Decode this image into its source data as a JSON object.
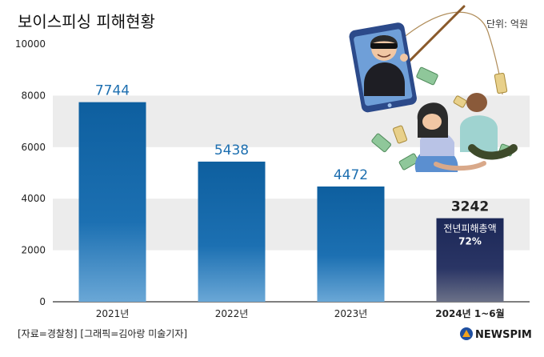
{
  "chart_data": {
    "type": "bar",
    "title": "보이스피싱 피해현황",
    "unit_label": "단위: 억원",
    "categories": [
      "2021년",
      "2022년",
      "2023년",
      "2024년 1~6월"
    ],
    "values": [
      7744,
      5438,
      4472,
      3242
    ],
    "ylim": [
      0,
      10000
    ],
    "yticks": [
      0,
      2000,
      4000,
      6000,
      8000,
      10000
    ],
    "highlight_index": 3,
    "annotation": {
      "line1": "전년피해총액",
      "line2": "72%"
    },
    "colors": {
      "bar_top": "#0e5f9f",
      "bar_bottom": "#6aa7d6",
      "highlight_top": "#1c2857",
      "highlight_bottom": "#6b7188",
      "label": "#1d6fb0",
      "highlight_label": "#222222",
      "band": "#ececec"
    }
  },
  "footer": {
    "source": "[자료=경찰청] [그래픽=김아랑 미술기자]",
    "brand": "NEWSPIM"
  },
  "illustration": {
    "name": "voice-phishing-scammer-illustration"
  }
}
